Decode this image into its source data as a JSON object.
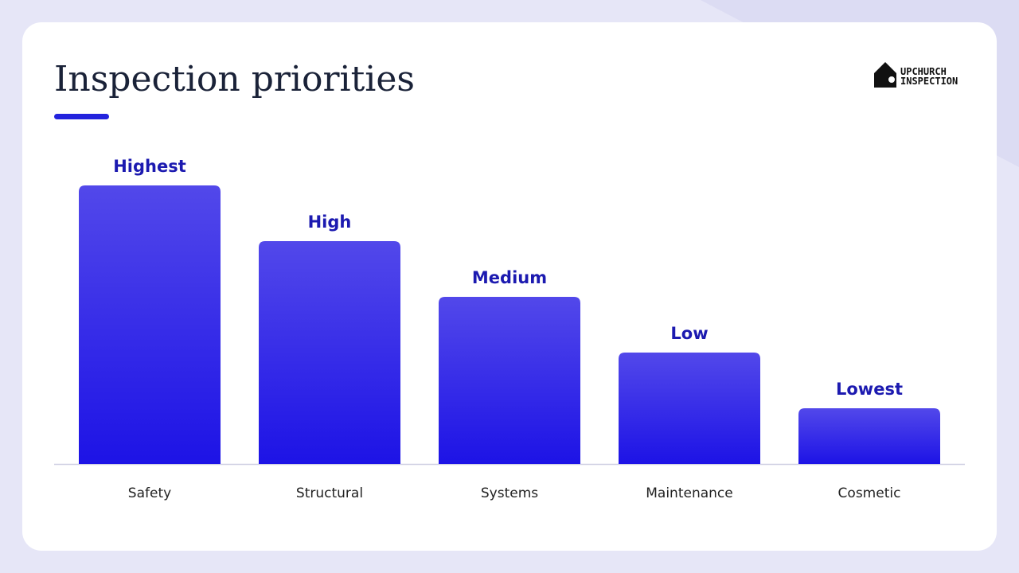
{
  "chart_data": {
    "type": "bar",
    "title": "Inspection priorities",
    "categories": [
      "Safety",
      "Structural",
      "Systems",
      "Maintenance",
      "Cosmetic"
    ],
    "values": [
      5,
      4,
      3,
      2,
      1
    ],
    "value_labels": [
      "Highest",
      "High",
      "Medium",
      "Low",
      "Lowest"
    ],
    "color": "#2a1fe6"
  },
  "logo": {
    "line1": "UPCHURCH",
    "line2": "INSPECTION"
  }
}
